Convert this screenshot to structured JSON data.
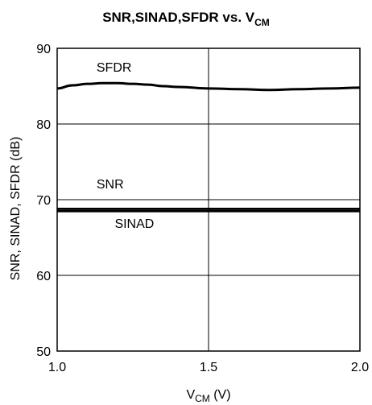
{
  "chart_data": {
    "type": "line",
    "title": {
      "main": "SNR,SINAD,SFDR vs. V",
      "sub": "CM"
    },
    "xlabel": {
      "main": "V",
      "sub": "CM",
      "suffix": " (V)"
    },
    "ylabel": "SNR, SINAD, SFDR (dB)",
    "xlim": [
      1.0,
      2.0
    ],
    "ylim": [
      50,
      90
    ],
    "x_ticks": [
      "1.0",
      "1.5",
      "2.0"
    ],
    "y_ticks": [
      "50",
      "60",
      "70",
      "80",
      "90"
    ],
    "grid": true,
    "series": [
      {
        "name": "SFDR",
        "x": [
          1.0,
          1.05,
          1.1,
          1.15,
          1.2,
          1.25,
          1.3,
          1.35,
          1.4,
          1.5,
          1.6,
          1.7,
          1.8,
          1.9,
          2.0
        ],
        "y": [
          84.7,
          85.1,
          85.3,
          85.4,
          85.4,
          85.3,
          85.2,
          85.0,
          84.9,
          84.7,
          84.6,
          84.5,
          84.6,
          84.7,
          84.8
        ]
      },
      {
        "name": "SNR",
        "x": [
          1.0,
          1.5,
          2.0
        ],
        "y": [
          68.8,
          68.8,
          68.8
        ]
      },
      {
        "name": "SINAD",
        "x": [
          1.0,
          1.5,
          2.0
        ],
        "y": [
          68.5,
          68.5,
          68.5
        ]
      }
    ]
  }
}
